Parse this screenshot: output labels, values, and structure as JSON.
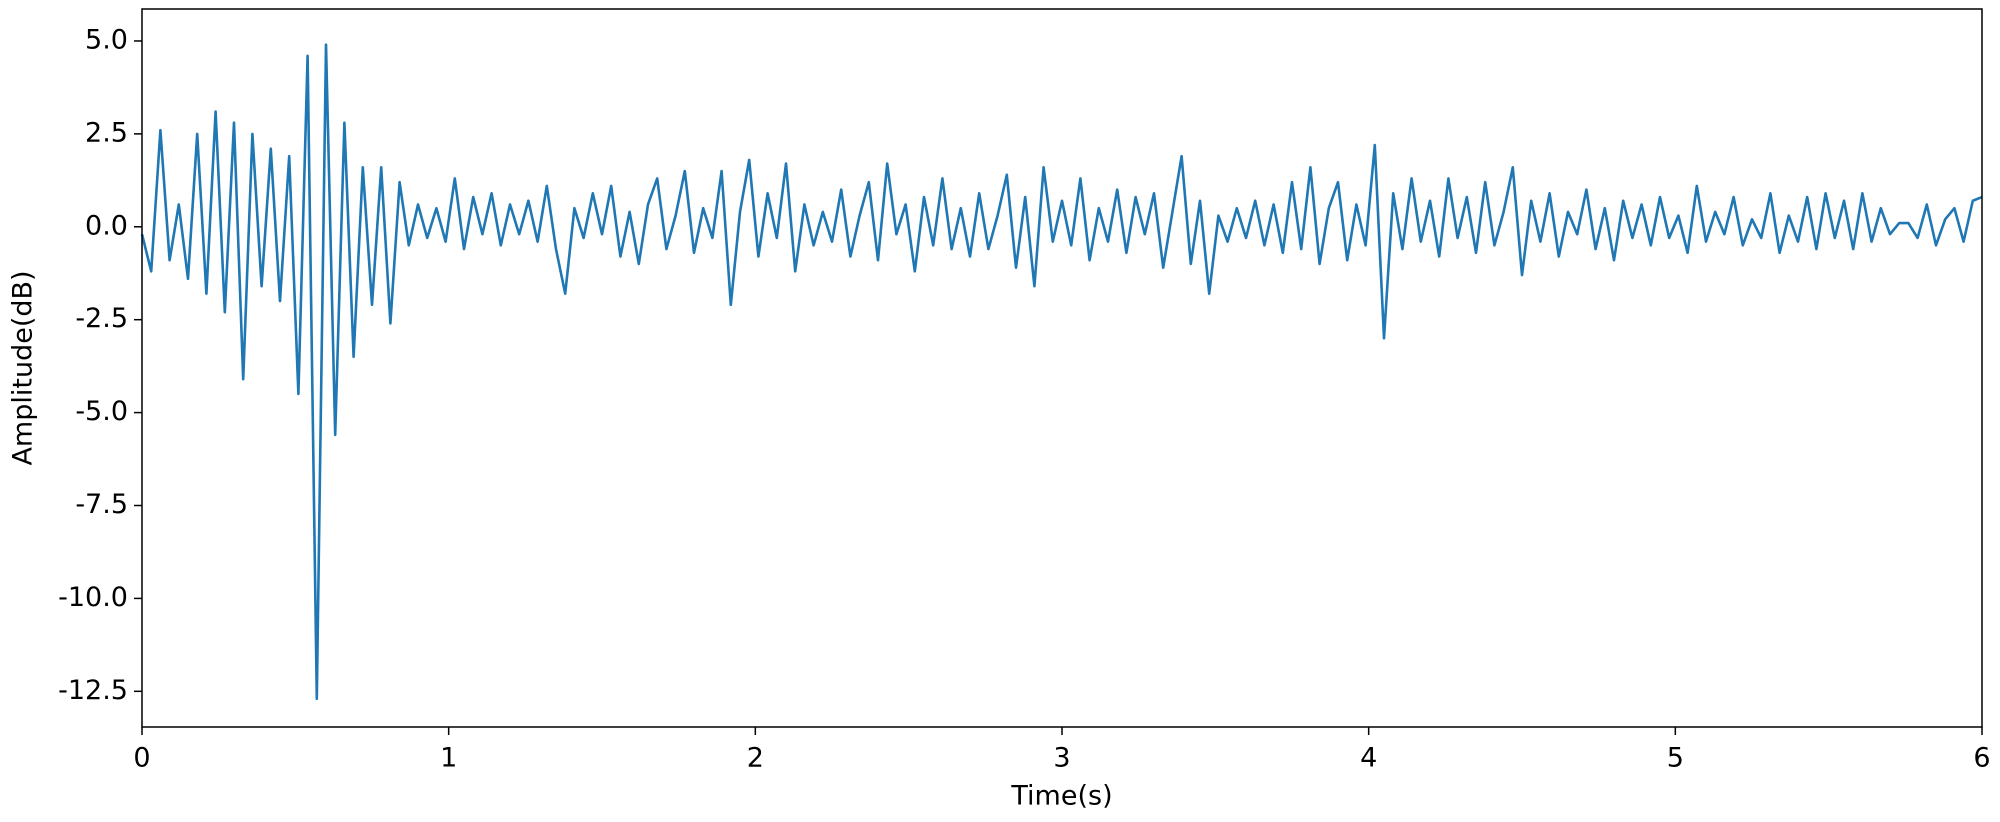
{
  "chart_data": {
    "type": "line",
    "x_label": "Time(s)",
    "y_label": "Amplitude(dB)",
    "color": "#1f77b4",
    "xlim": [
      0,
      6
    ],
    "ylim": [
      -13.46,
      5.86
    ],
    "xticks": [
      0,
      1,
      2,
      3,
      4,
      5,
      6
    ],
    "yticks": [
      {
        "value": 5,
        "label": "5.0"
      },
      2.5,
      {
        "value": 0,
        "label": "0.0"
      },
      -2.5,
      {
        "value": -5,
        "label": "-5.0"
      },
      -7.5,
      {
        "value": -10,
        "label": "-10.0"
      },
      -12.5
    ],
    "x": [
      0,
      0.03,
      0.06,
      0.09,
      0.12,
      0.15,
      0.18,
      0.21,
      0.24,
      0.27,
      0.3,
      0.33,
      0.36,
      0.39,
      0.42,
      0.45,
      0.48,
      0.51,
      0.54,
      0.57,
      0.6,
      0.63,
      0.66,
      0.69,
      0.72,
      0.75,
      0.78,
      0.81,
      0.84,
      0.87,
      0.9,
      0.93,
      0.96,
      0.99,
      1.02,
      1.05,
      1.08,
      1.11,
      1.14,
      1.17,
      1.2,
      1.23,
      1.26,
      1.29,
      1.32,
      1.35,
      1.38,
      1.41,
      1.44,
      1.47,
      1.5,
      1.53,
      1.56,
      1.59,
      1.62,
      1.65,
      1.68,
      1.71,
      1.74,
      1.77,
      1.8,
      1.83,
      1.86,
      1.89,
      1.92,
      1.95,
      1.98,
      2.01,
      2.04,
      2.07,
      2.1,
      2.13,
      2.16,
      2.19,
      2.22,
      2.25,
      2.28,
      2.31,
      2.34,
      2.37,
      2.4,
      2.43,
      2.46,
      2.49,
      2.52,
      2.55,
      2.58,
      2.61,
      2.64,
      2.67,
      2.7,
      2.73,
      2.76,
      2.79,
      2.82,
      2.85,
      2.88,
      2.91,
      2.94,
      2.97,
      3,
      3.03,
      3.06,
      3.09,
      3.12,
      3.15,
      3.18,
      3.21,
      3.24,
      3.27,
      3.3,
      3.33,
      3.36,
      3.39,
      3.42,
      3.45,
      3.48,
      3.51,
      3.54,
      3.57,
      3.6,
      3.63,
      3.66,
      3.69,
      3.72,
      3.75,
      3.78,
      3.81,
      3.84,
      3.87,
      3.9,
      3.93,
      3.96,
      3.99,
      4.02,
      4.05,
      4.08,
      4.11,
      4.14,
      4.17,
      4.2,
      4.23,
      4.26,
      4.29,
      4.32,
      4.35,
      4.38,
      4.41,
      4.44,
      4.47,
      4.5,
      4.53,
      4.56,
      4.59,
      4.62,
      4.65,
      4.68,
      4.71,
      4.74,
      4.77,
      4.8,
      4.83,
      4.86,
      4.89,
      4.92,
      4.95,
      4.98,
      5.01,
      5.04,
      5.07,
      5.1,
      5.13,
      5.16,
      5.19,
      5.22,
      5.25,
      5.28,
      5.31,
      5.34,
      5.37,
      5.4,
      5.43,
      5.46,
      5.49,
      5.52,
      5.55,
      5.58,
      5.61,
      5.64,
      5.67,
      5.7,
      5.73,
      5.76,
      5.79,
      5.82,
      5.85,
      5.88,
      5.91,
      5.94,
      5.97,
      6
    ],
    "values": [
      -0.2,
      -1.2,
      2.6,
      -0.9,
      0.6,
      -1.4,
      2.5,
      -1.8,
      3.1,
      -2.3,
      2.8,
      -4.1,
      2.5,
      -1.6,
      2.1,
      -2.0,
      1.9,
      -4.5,
      4.6,
      -12.7,
      4.9,
      -5.6,
      2.8,
      -3.5,
      1.6,
      -2.1,
      1.6,
      -2.6,
      1.2,
      -0.5,
      0.6,
      -0.3,
      0.5,
      -0.4,
      1.3,
      -0.6,
      0.8,
      -0.2,
      0.9,
      -0.5,
      0.6,
      -0.2,
      0.7,
      -0.4,
      1.1,
      -0.6,
      -1.8,
      0.5,
      -0.3,
      0.9,
      -0.2,
      1.1,
      -0.8,
      0.4,
      -1.0,
      0.6,
      1.3,
      -0.6,
      0.3,
      1.5,
      -0.7,
      0.5,
      -0.3,
      1.5,
      -2.1,
      0.4,
      1.8,
      -0.8,
      0.9,
      -0.3,
      1.7,
      -1.2,
      0.6,
      -0.5,
      0.4,
      -0.4,
      1.0,
      -0.8,
      0.3,
      1.2,
      -0.9,
      1.7,
      -0.2,
      0.6,
      -1.2,
      0.8,
      -0.5,
      1.3,
      -0.6,
      0.5,
      -0.8,
      0.9,
      -0.6,
      0.3,
      1.4,
      -1.1,
      0.8,
      -1.6,
      1.6,
      -0.4,
      0.7,
      -0.5,
      1.3,
      -0.9,
      0.5,
      -0.4,
      1.0,
      -0.7,
      0.8,
      -0.2,
      0.9,
      -1.1,
      0.4,
      1.9,
      -1.0,
      0.7,
      -1.8,
      0.3,
      -0.4,
      0.5,
      -0.3,
      0.7,
      -0.5,
      0.6,
      -0.7,
      1.2,
      -0.6,
      1.6,
      -1.0,
      0.5,
      1.2,
      -0.9,
      0.6,
      -0.5,
      2.2,
      -3.0,
      0.9,
      -0.6,
      1.3,
      -0.4,
      0.7,
      -0.8,
      1.3,
      -0.3,
      0.8,
      -0.7,
      1.2,
      -0.5,
      0.4,
      1.6,
      -1.3,
      0.7,
      -0.4,
      0.9,
      -0.8,
      0.4,
      -0.2,
      1.0,
      -0.6,
      0.5,
      -0.9,
      0.7,
      -0.3,
      0.6,
      -0.5,
      0.8,
      -0.3,
      0.3,
      -0.7,
      1.1,
      -0.4,
      0.4,
      -0.2,
      0.8,
      -0.5,
      0.2,
      -0.3,
      0.9,
      -0.7,
      0.3,
      -0.4,
      0.8,
      -0.6,
      0.9,
      -0.3,
      0.7,
      -0.6,
      0.9,
      -0.4,
      0.5,
      -0.2,
      0.1,
      0.1,
      -0.3,
      0.6,
      -0.5,
      0.2,
      0.5,
      -0.4,
      0.7,
      0.8
    ]
  }
}
